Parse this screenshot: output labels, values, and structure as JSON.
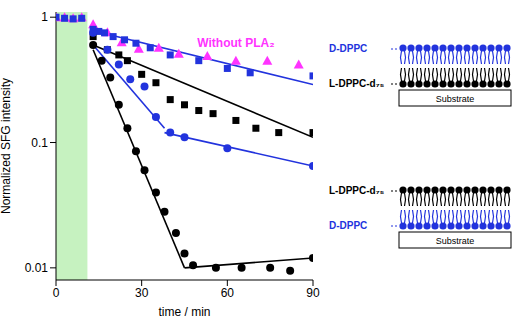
{
  "chart_data": {
    "type": "scatter",
    "xlabel": "time / min",
    "ylabel": "Normalized SFG intensity",
    "xlim": [
      0,
      90
    ],
    "xticks": [
      0,
      30,
      60,
      90
    ],
    "ylim": [
      0.008,
      1.1
    ],
    "yticks": [
      0.01,
      0.1,
      1
    ],
    "log": "y",
    "shaded_x": [
      0,
      11
    ],
    "series": [
      {
        "name": "Without PLA₂",
        "type": "scatter",
        "marker": "triangle",
        "color": "#ff33ff",
        "x": [
          0,
          3,
          6,
          9,
          13,
          18,
          23,
          29,
          36,
          43,
          53,
          63,
          74,
          85
        ],
        "values": [
          1,
          1,
          0.98,
          1,
          0.88,
          0.76,
          0.63,
          0.56,
          0.57,
          0.51,
          0.49,
          0.45,
          0.45,
          0.42
        ]
      },
      {
        "type": "scatter",
        "marker": "square",
        "color": "#2233dd",
        "x": [
          0,
          3,
          6,
          9,
          13,
          15,
          17,
          20,
          24,
          28,
          33,
          40,
          50,
          60,
          68,
          90
        ],
        "values": [
          1,
          0.98,
          0.97,
          0.98,
          0.8,
          0.77,
          0.75,
          0.7,
          0.66,
          0.62,
          0.57,
          0.5,
          0.45,
          0.39,
          0.36,
          0.34
        ]
      },
      {
        "type": "scatter",
        "marker": "square",
        "color": "#000000",
        "x": [
          13,
          18,
          22,
          25,
          30,
          35,
          40,
          45,
          50,
          55,
          63,
          70,
          78,
          90
        ],
        "values": [
          0.7,
          0.55,
          0.5,
          0.45,
          0.35,
          0.3,
          0.22,
          0.2,
          0.18,
          0.17,
          0.15,
          0.13,
          0.12,
          0.12
        ]
      },
      {
        "type": "scatter",
        "marker": "circle",
        "color": "#2233dd",
        "x": [
          13,
          18,
          22,
          26,
          31,
          35,
          40,
          45,
          60,
          90
        ],
        "values": [
          0.75,
          0.55,
          0.42,
          0.32,
          0.28,
          0.16,
          0.12,
          0.11,
          0.09,
          0.065
        ]
      },
      {
        "type": "scatter",
        "marker": "circle",
        "color": "#000000",
        "x": [
          13,
          16,
          19,
          22,
          25,
          28,
          31,
          35,
          38,
          42,
          45,
          48,
          56,
          65,
          75,
          82,
          90
        ],
        "values": [
          0.6,
          0.45,
          0.33,
          0.2,
          0.13,
          0.085,
          0.06,
          0.04,
          0.028,
          0.019,
          0.013,
          0.0105,
          0.01,
          0.01,
          0.01,
          0.0095,
          0.012
        ]
      },
      {
        "type": "line",
        "marker": "none",
        "line_style": "solid",
        "color": "#2233dd",
        "x": [
          13,
          90
        ],
        "values": [
          0.78,
          0.29
        ]
      },
      {
        "type": "line",
        "marker": "none",
        "line_style": "solid",
        "color": "#000000",
        "x": [
          13,
          90
        ],
        "values": [
          0.6,
          0.11
        ]
      },
      {
        "type": "line",
        "marker": "none",
        "line_style": "solid",
        "color": "#2233dd",
        "x": [
          13,
          38
        ],
        "values": [
          0.6,
          0.13
        ]
      },
      {
        "type": "line",
        "marker": "none",
        "line_style": "solid",
        "color": "#2233dd",
        "x": [
          38,
          90
        ],
        "values": [
          0.12,
          0.065
        ]
      },
      {
        "type": "line",
        "marker": "none",
        "line_style": "solid",
        "color": "#000000",
        "x": [
          13,
          45
        ],
        "values": [
          0.55,
          0.01
        ]
      },
      {
        "type": "line",
        "marker": "none",
        "line_style": "solid",
        "color": "#000000",
        "x": [
          45,
          90
        ],
        "values": [
          0.01,
          0.012
        ]
      }
    ]
  },
  "diagrams": [
    {
      "top": {
        "label": "D-DPPC",
        "color": "#2233dd"
      },
      "bottom": {
        "label": "L-DPPC-d₇₅",
        "color": "#000000"
      },
      "substrate": "Substrate"
    },
    {
      "top": {
        "label": "L-DPPC-d₇₅",
        "color": "#000000"
      },
      "bottom": {
        "label": "D-DPPC",
        "color": "#2233dd"
      },
      "substrate": "Substrate"
    }
  ]
}
